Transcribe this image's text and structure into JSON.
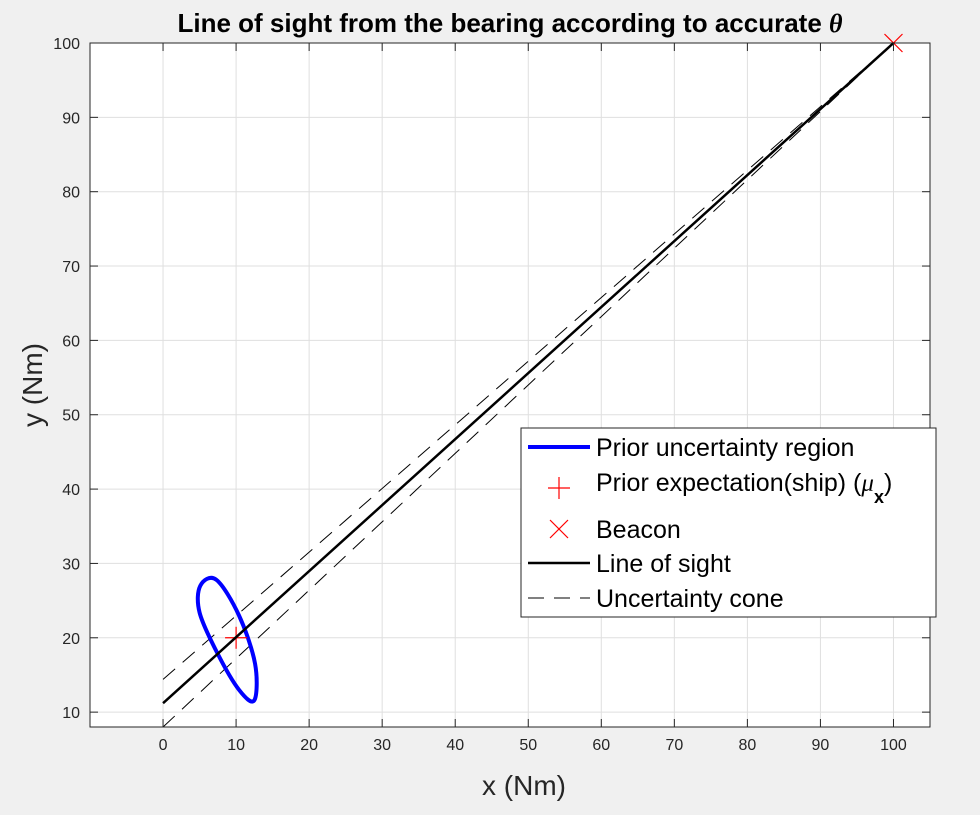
{
  "chart_data": {
    "type": "line",
    "title": "Line of sight from the bearing according to accurate",
    "title_symbol": "θ",
    "xlabel": "x (Nm)",
    "ylabel": "y (Nm)",
    "xlim": [
      -10,
      105
    ],
    "ylim": [
      8,
      100
    ],
    "x_ticks": [
      0,
      10,
      20,
      30,
      40,
      50,
      60,
      70,
      80,
      90,
      100
    ],
    "y_ticks": [
      10,
      20,
      30,
      40,
      50,
      60,
      70,
      80,
      90,
      100
    ],
    "grid": true,
    "legend_position": "lower-right",
    "series": [
      {
        "name": "Prior uncertainty region",
        "kind": "ellipse",
        "color": "#0000ff",
        "points": [
          [
            12.6,
            16.5
          ],
          [
            12.5,
            11.6
          ],
          [
            10.4,
            13.0
          ],
          [
            7.4,
            18.0
          ],
          [
            5.0,
            23.4
          ],
          [
            5.1,
            27.0
          ],
          [
            7.3,
            27.8
          ],
          [
            10.4,
            23.0
          ],
          [
            12.6,
            16.5
          ]
        ]
      },
      {
        "name": "Prior expectation(ship) (",
        "name_symbol": "μ",
        "name_subscript": "x",
        "name_suffix": ")",
        "kind": "marker-plus",
        "color": "#ff0000",
        "x": [
          10
        ],
        "y": [
          20
        ]
      },
      {
        "name": "Beacon",
        "kind": "marker-x",
        "color": "#ff0000",
        "x": [
          100
        ],
        "y": [
          100
        ]
      },
      {
        "name": "Line of sight",
        "kind": "solid",
        "color": "#000000",
        "x": [
          0,
          100
        ],
        "y": [
          11.2,
          100
        ]
      },
      {
        "name": "Uncertainty cone",
        "kind": "dashed",
        "color": "#000000",
        "lines": [
          {
            "x": [
              0,
              100
            ],
            "y": [
              14.4,
              100
            ]
          },
          {
            "x": [
              0,
              100
            ],
            "y": [
              8.0,
              100
            ]
          }
        ]
      }
    ]
  }
}
